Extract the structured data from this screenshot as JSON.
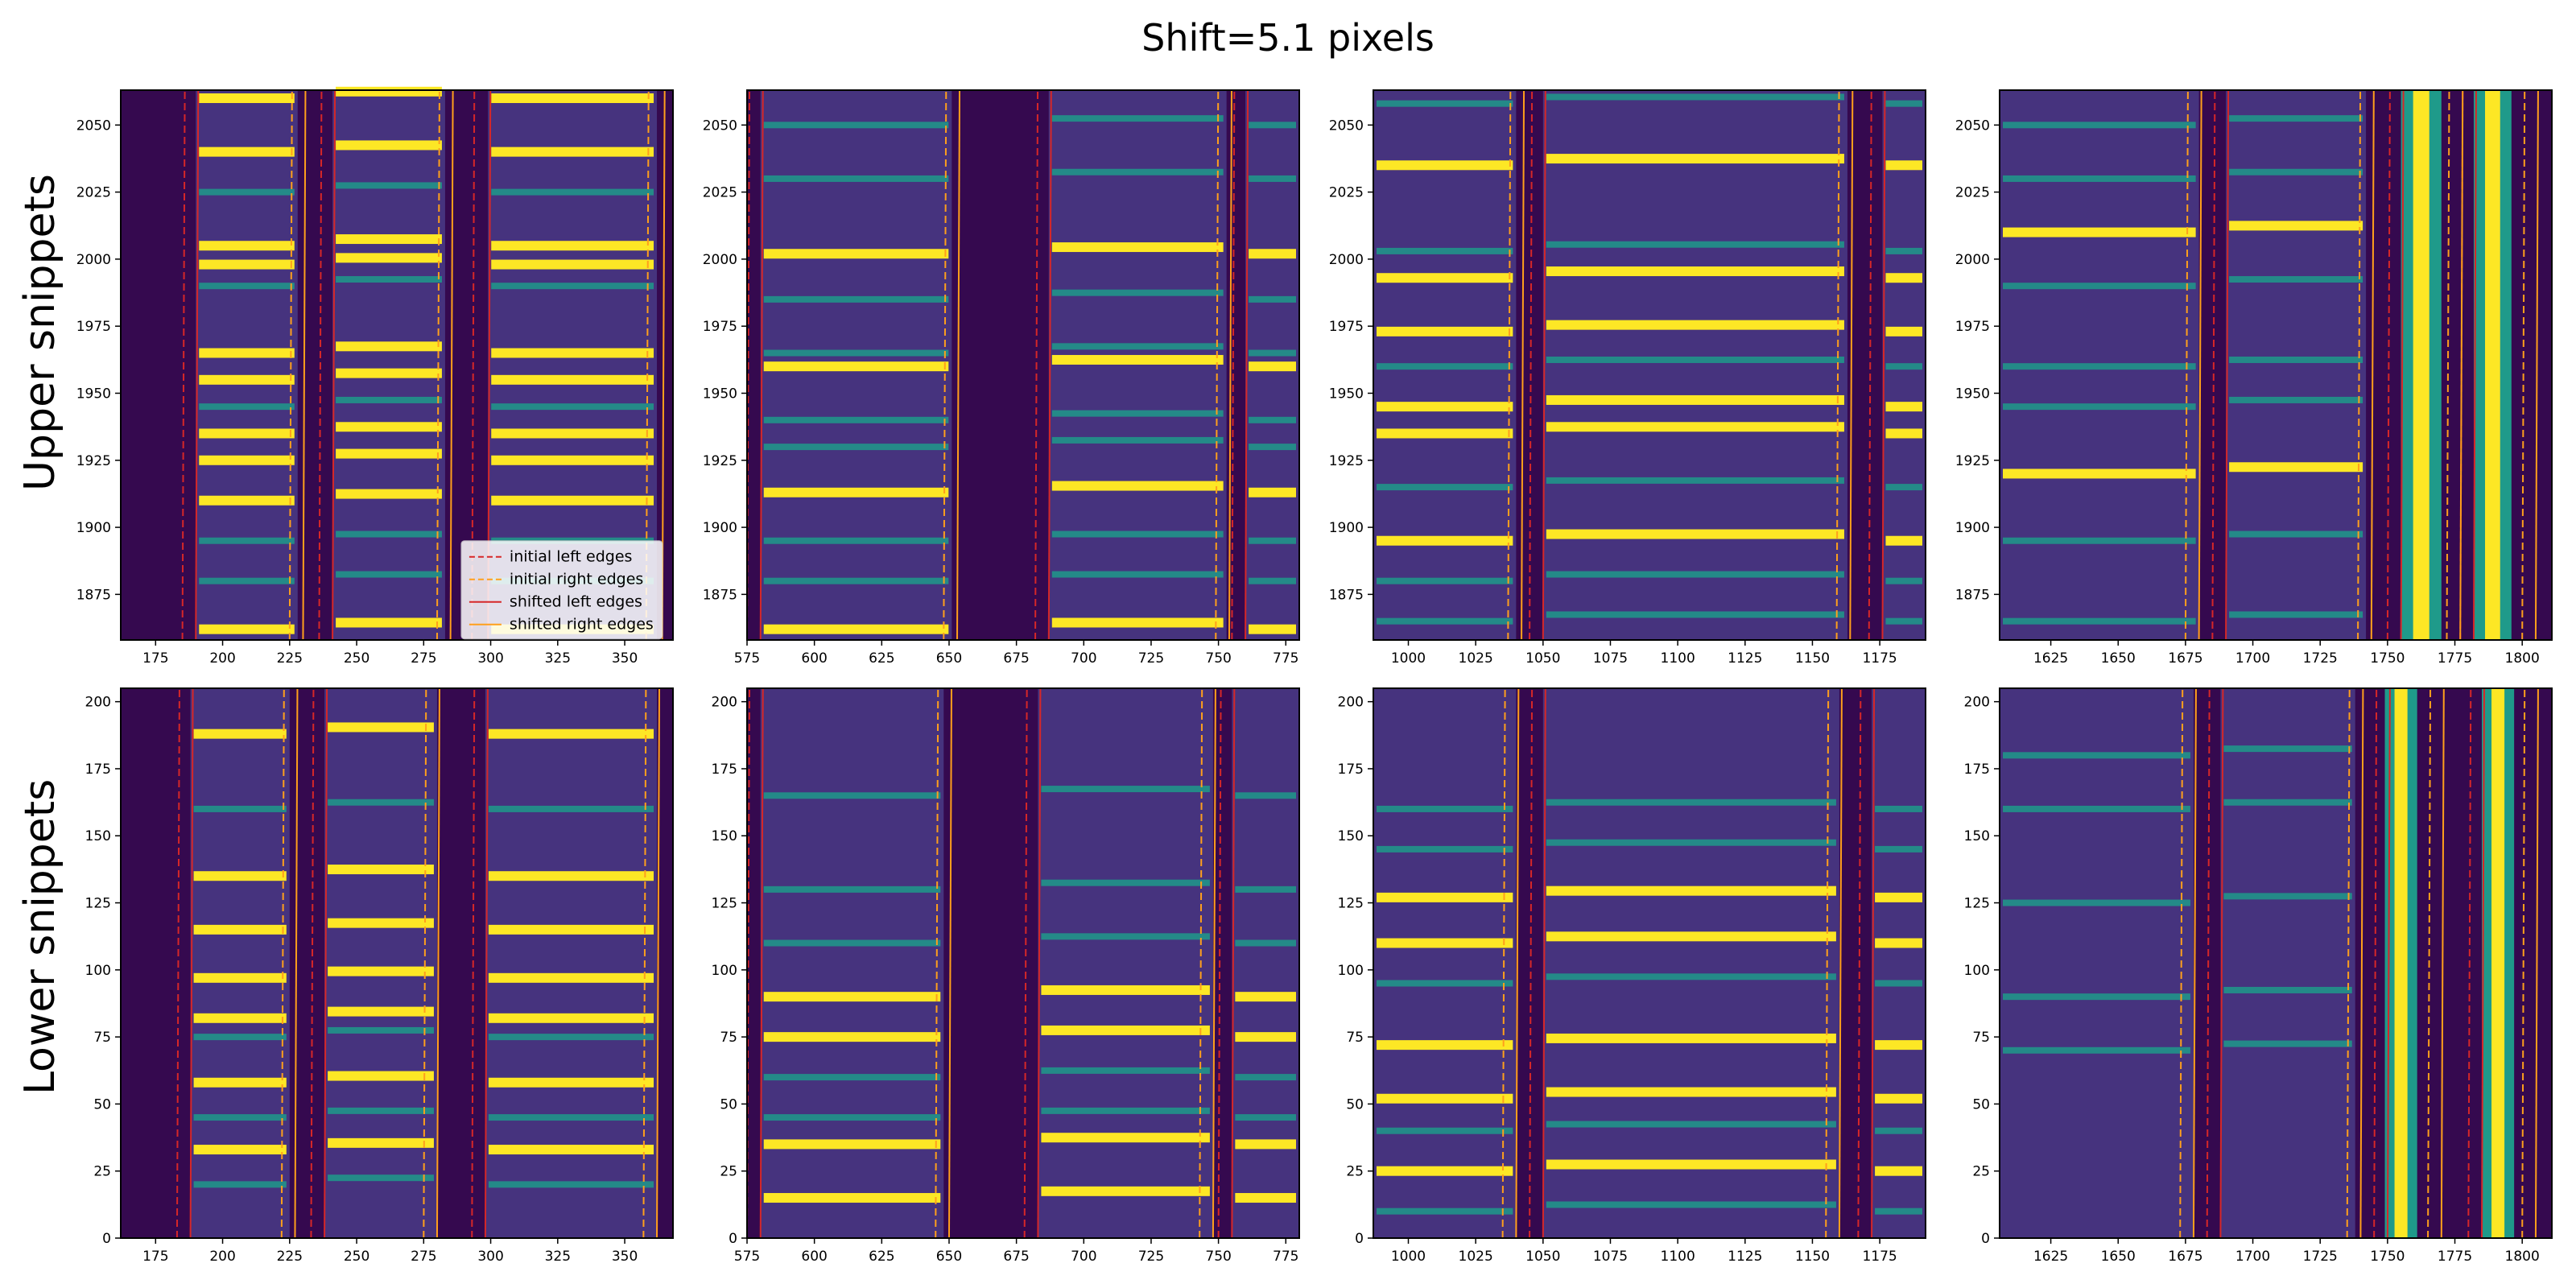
{
  "figure": {
    "title": "Shift=5.1 pixels",
    "row_labels": [
      "Upper snippets",
      "Lower snippets"
    ]
  },
  "colors": {
    "background_field": "#46337e",
    "dark_gap": "#35094f",
    "dim_line": "#355f8d",
    "medium_line": "#1f9a8a",
    "bright_line": "#fde725",
    "initial_edge": "#d62728",
    "shifted_edge": "#d62728",
    "right_edge_alt": "#ff9f1c"
  },
  "legend": {
    "location": "lower right of top-left panel",
    "entries": [
      {
        "label": "initial left edges",
        "style": "dashed"
      },
      {
        "label": "initial right edges",
        "style": "dashed-orange"
      },
      {
        "label": "shifted left edges",
        "style": "solid"
      },
      {
        "label": "shifted right edges",
        "style": "solid-orange"
      }
    ]
  },
  "chart_data": [
    {
      "type": "heatmap",
      "row": "upper",
      "col": 0,
      "xlim": [
        162,
        368
      ],
      "ylim": [
        1858,
        2063
      ],
      "xticks": [
        175,
        200,
        225,
        250,
        275,
        300,
        325,
        350
      ],
      "yticks": [
        1875,
        1900,
        1925,
        1950,
        1975,
        2000,
        2025,
        2050
      ],
      "slits": [
        [
          190,
          228
        ],
        [
          241,
          283
        ],
        [
          299,
          362
        ]
      ],
      "edges": {
        "initial_left": [
          185,
          236,
          293
        ],
        "initial_right": [
          225,
          280,
          358
        ],
        "shifted_left": [
          190,
          241,
          299
        ],
        "shifted_right": [
          230,
          285,
          364
        ]
      },
      "lines": [
        {
          "y": 2060,
          "s": 2
        },
        {
          "y": 2040,
          "s": 2
        },
        {
          "y": 2025,
          "s": 1
        },
        {
          "y": 2005,
          "s": 2
        },
        {
          "y": 1998,
          "s": 2
        },
        {
          "y": 1990,
          "s": 1
        },
        {
          "y": 1965,
          "s": 2
        },
        {
          "y": 1955,
          "s": 2
        },
        {
          "y": 1945,
          "s": 1
        },
        {
          "y": 1935,
          "s": 2
        },
        {
          "y": 1925,
          "s": 2
        },
        {
          "y": 1910,
          "s": 2
        },
        {
          "y": 1895,
          "s": 1
        },
        {
          "y": 1880,
          "s": 1
        },
        {
          "y": 1862,
          "s": 2
        }
      ]
    },
    {
      "type": "heatmap",
      "row": "upper",
      "col": 1,
      "xlim": [
        575,
        780
      ],
      "ylim": [
        1858,
        2063
      ],
      "xticks": [
        575,
        600,
        625,
        650,
        675,
        700,
        725,
        750,
        775
      ],
      "yticks": [
        1875,
        1900,
        1925,
        1950,
        1975,
        2000,
        2025,
        2050
      ],
      "slits": [
        [
          580,
          651
        ],
        [
          687,
          753
        ],
        [
          760,
          780
        ]
      ],
      "edges": {
        "initial_left": [
          575,
          682,
          755
        ],
        "initial_right": [
          648,
          749
        ],
        "shifted_left": [
          580,
          687,
          760
        ],
        "shifted_right": [
          653,
          754
        ]
      },
      "lines": [
        {
          "y": 2050,
          "s": 1
        },
        {
          "y": 2030,
          "s": 1
        },
        {
          "y": 2002,
          "s": 2
        },
        {
          "y": 1985,
          "s": 1
        },
        {
          "y": 1965,
          "s": 1
        },
        {
          "y": 1960,
          "s": 2
        },
        {
          "y": 1940,
          "s": 1
        },
        {
          "y": 1930,
          "s": 1
        },
        {
          "y": 1913,
          "s": 2
        },
        {
          "y": 1895,
          "s": 1
        },
        {
          "y": 1880,
          "s": 1
        },
        {
          "y": 1862,
          "s": 2
        }
      ]
    },
    {
      "type": "heatmap",
      "row": "upper",
      "col": 2,
      "xlim": [
        987,
        1192
      ],
      "ylim": [
        1858,
        2063
      ],
      "xticks": [
        1000,
        1025,
        1050,
        1075,
        1100,
        1125,
        1150,
        1175
      ],
      "yticks": [
        1875,
        1900,
        1925,
        1950,
        1975,
        2000,
        2025,
        2050
      ],
      "slits": [
        [
          987,
          1040
        ],
        [
          1050,
          1163
        ],
        [
          1176,
          1192
        ]
      ],
      "edges": {
        "initial_left": [
          1045,
          1171
        ],
        "initial_right": [
          1037,
          1159
        ],
        "shifted_left": [
          1050,
          1176
        ],
        "shifted_right": [
          1042,
          1164
        ]
      },
      "lines": [
        {
          "y": 2058,
          "s": 1
        },
        {
          "y": 2035,
          "s": 2
        },
        {
          "y": 2003,
          "s": 1
        },
        {
          "y": 1993,
          "s": 2
        },
        {
          "y": 1973,
          "s": 2
        },
        {
          "y": 1960,
          "s": 1
        },
        {
          "y": 1945,
          "s": 2
        },
        {
          "y": 1935,
          "s": 2
        },
        {
          "y": 1915,
          "s": 1
        },
        {
          "y": 1895,
          "s": 2
        },
        {
          "y": 1880,
          "s": 1
        },
        {
          "y": 1865,
          "s": 1
        }
      ]
    },
    {
      "type": "heatmap",
      "row": "upper",
      "col": 3,
      "xlim": [
        1606,
        1811
      ],
      "ylim": [
        1858,
        2063
      ],
      "xticks": [
        1625,
        1650,
        1675,
        1700,
        1725,
        1750,
        1775,
        1800
      ],
      "yticks": [
        1875,
        1900,
        1925,
        1950,
        1975,
        2000,
        2025,
        2050
      ],
      "slits": [
        [
          1606,
          1680
        ],
        [
          1690,
          1742
        ]
      ],
      "bright_columns": [
        [
          1755,
          1770
        ],
        [
          1782,
          1796
        ]
      ],
      "edges": {
        "initial_left": [
          1685,
          1750,
          1777
        ],
        "initial_right": [
          1675,
          1739,
          1772,
          1800
        ],
        "shifted_left": [
          1690,
          1755,
          1782
        ],
        "shifted_right": [
          1680,
          1744,
          1777,
          1805
        ]
      },
      "lines": [
        {
          "y": 2050,
          "s": 1
        },
        {
          "y": 2030,
          "s": 1
        },
        {
          "y": 2010,
          "s": 2
        },
        {
          "y": 1990,
          "s": 1
        },
        {
          "y": 1960,
          "s": 1
        },
        {
          "y": 1945,
          "s": 1
        },
        {
          "y": 1920,
          "s": 2
        },
        {
          "y": 1895,
          "s": 1
        },
        {
          "y": 1865,
          "s": 1
        }
      ]
    },
    {
      "type": "heatmap",
      "row": "lower",
      "col": 0,
      "xlim": [
        162,
        368
      ],
      "ylim": [
        0,
        205
      ],
      "xticks": [
        175,
        200,
        225,
        250,
        275,
        300,
        325,
        350
      ],
      "yticks": [
        0,
        25,
        50,
        75,
        100,
        125,
        150,
        175,
        200
      ],
      "slits": [
        [
          188,
          225
        ],
        [
          238,
          280
        ],
        [
          298,
          362
        ]
      ],
      "edges": {
        "initial_left": [
          183,
          233,
          293
        ],
        "initial_right": [
          222,
          275,
          357
        ],
        "shifted_left": [
          188,
          238,
          298
        ],
        "shifted_right": [
          227,
          280,
          362
        ]
      },
      "lines": [
        {
          "y": 188,
          "s": 2
        },
        {
          "y": 160,
          "s": 1
        },
        {
          "y": 135,
          "s": 2
        },
        {
          "y": 115,
          "s": 2
        },
        {
          "y": 97,
          "s": 2
        },
        {
          "y": 82,
          "s": 2
        },
        {
          "y": 75,
          "s": 1
        },
        {
          "y": 58,
          "s": 2
        },
        {
          "y": 45,
          "s": 1
        },
        {
          "y": 33,
          "s": 2
        },
        {
          "y": 20,
          "s": 1
        }
      ]
    },
    {
      "type": "heatmap",
      "row": "lower",
      "col": 1,
      "xlim": [
        575,
        780
      ],
      "ylim": [
        0,
        205
      ],
      "xticks": [
        575,
        600,
        625,
        650,
        675,
        700,
        725,
        750,
        775
      ],
      "yticks": [
        0,
        25,
        50,
        75,
        100,
        125,
        150,
        175,
        200
      ],
      "slits": [
        [
          580,
          648
        ],
        [
          683,
          748
        ],
        [
          755,
          780
        ]
      ],
      "edges": {
        "initial_left": [
          575,
          678,
          750
        ],
        "initial_right": [
          645,
          743
        ],
        "shifted_left": [
          580,
          683,
          755
        ],
        "shifted_right": [
          650,
          748
        ]
      },
      "lines": [
        {
          "y": 165,
          "s": 1
        },
        {
          "y": 130,
          "s": 1
        },
        {
          "y": 110,
          "s": 1
        },
        {
          "y": 90,
          "s": 2
        },
        {
          "y": 75,
          "s": 2
        },
        {
          "y": 60,
          "s": 1
        },
        {
          "y": 45,
          "s": 1
        },
        {
          "y": 35,
          "s": 2
        },
        {
          "y": 15,
          "s": 2
        }
      ]
    },
    {
      "type": "heatmap",
      "row": "lower",
      "col": 2,
      "xlim": [
        987,
        1192
      ],
      "ylim": [
        0,
        205
      ],
      "xticks": [
        1000,
        1025,
        1050,
        1075,
        1100,
        1125,
        1150,
        1175
      ],
      "yticks": [
        0,
        25,
        50,
        75,
        100,
        125,
        150,
        175,
        200
      ],
      "slits": [
        [
          987,
          1040
        ],
        [
          1050,
          1160
        ],
        [
          1172,
          1192
        ]
      ],
      "edges": {
        "initial_left": [
          1045,
          1167
        ],
        "initial_right": [
          1035,
          1155
        ],
        "shifted_left": [
          1050,
          1172
        ],
        "shifted_right": [
          1040,
          1160
        ]
      },
      "lines": [
        {
          "y": 160,
          "s": 1
        },
        {
          "y": 145,
          "s": 1
        },
        {
          "y": 127,
          "s": 2
        },
        {
          "y": 110,
          "s": 2
        },
        {
          "y": 95,
          "s": 1
        },
        {
          "y": 72,
          "s": 2
        },
        {
          "y": 52,
          "s": 2
        },
        {
          "y": 40,
          "s": 1
        },
        {
          "y": 25,
          "s": 2
        },
        {
          "y": 10,
          "s": 1
        }
      ]
    },
    {
      "type": "heatmap",
      "row": "lower",
      "col": 3,
      "xlim": [
        1606,
        1811
      ],
      "ylim": [
        0,
        205
      ],
      "xticks": [
        1625,
        1650,
        1675,
        1700,
        1725,
        1750,
        1775,
        1800
      ],
      "yticks": [
        0,
        25,
        50,
        75,
        100,
        125,
        150,
        175,
        200
      ],
      "slits": [
        [
          1606,
          1678
        ],
        [
          1688,
          1738
        ]
      ],
      "bright_columns": [
        [
          1749,
          1761
        ],
        [
          1785,
          1797
        ]
      ],
      "edges": {
        "initial_left": [
          1683,
          1745,
          1780
        ],
        "initial_right": [
          1673,
          1735,
          1765,
          1800
        ],
        "shifted_left": [
          1688,
          1750,
          1785
        ],
        "shifted_right": [
          1678,
          1740,
          1770,
          1805
        ]
      },
      "lines": [
        {
          "y": 180,
          "s": 1
        },
        {
          "y": 160,
          "s": 1
        },
        {
          "y": 125,
          "s": 1
        },
        {
          "y": 90,
          "s": 1
        },
        {
          "y": 70,
          "s": 1
        }
      ]
    }
  ]
}
